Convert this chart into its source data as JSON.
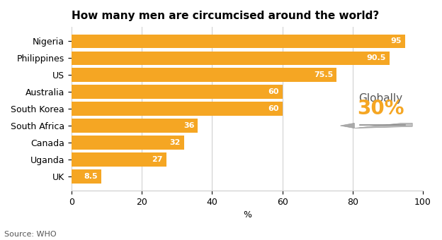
{
  "title": "How many men are circumcised around the world?",
  "source": "Source: WHO",
  "xlabel": "%",
  "categories": [
    "Nigeria",
    "Philippines",
    "US",
    "Australia",
    "South Korea",
    "South Africa",
    "Canada",
    "Uganda",
    "UK"
  ],
  "values": [
    95,
    90.5,
    75.5,
    60,
    60,
    36,
    32,
    27,
    8.5
  ],
  "bar_color": "#F5A623",
  "bar_label_color": "#FFFFFF",
  "xlim": [
    0,
    100
  ],
  "xticks": [
    0,
    20,
    40,
    60,
    80,
    100
  ],
  "globally_label": "Globally",
  "globally_value": "30%",
  "globally_label_color": "#555555",
  "globally_value_color": "#F5A623",
  "title_fontsize": 11,
  "label_fontsize": 9,
  "source_fontsize": 8,
  "bar_label_fontsize": 8,
  "globally_label_fontsize": 11,
  "globally_value_fontsize": 20,
  "background_color": "#FFFFFF",
  "grid_color": "#CCCCCC"
}
